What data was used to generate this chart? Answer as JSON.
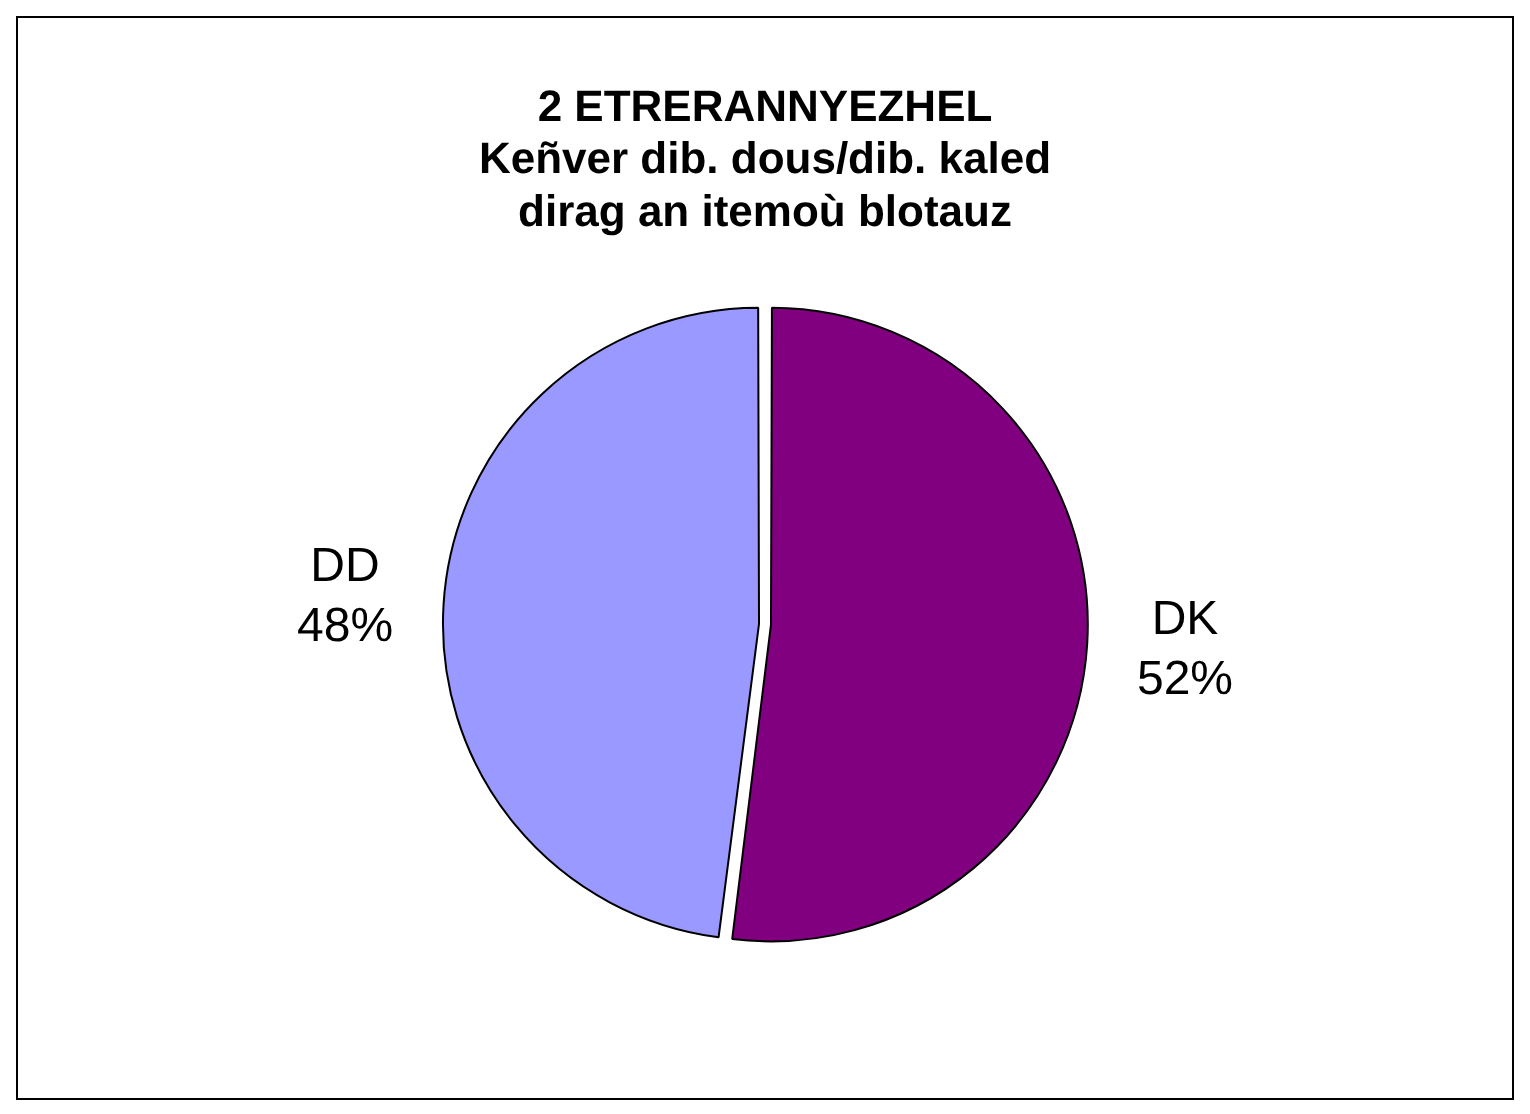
{
  "chart_data": {
    "type": "pie",
    "title": "2 ETRERANNYEZHEL\nKeñver dib. dous/dib. kaled\ndirag an itemoù blotauz",
    "categories": [
      "DK",
      "DD"
    ],
    "values": [
      52,
      48
    ],
    "value_labels": [
      "52%",
      "48%"
    ],
    "colors": [
      "#800080",
      "#9999ff"
    ],
    "legend": false
  }
}
